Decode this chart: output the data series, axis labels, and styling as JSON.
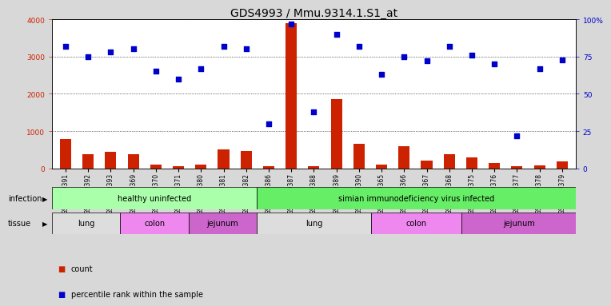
{
  "title": "GDS4993 / Mmu.9314.1.S1_at",
  "samples": [
    "GSM1249391",
    "GSM1249392",
    "GSM1249393",
    "GSM1249369",
    "GSM1249370",
    "GSM1249371",
    "GSM1249380",
    "GSM1249381",
    "GSM1249382",
    "GSM1249386",
    "GSM1249387",
    "GSM1249388",
    "GSM1249389",
    "GSM1249390",
    "GSM1249365",
    "GSM1249366",
    "GSM1249367",
    "GSM1249368",
    "GSM1249375",
    "GSM1249376",
    "GSM1249377",
    "GSM1249378",
    "GSM1249379"
  ],
  "counts": [
    780,
    380,
    440,
    380,
    110,
    60,
    110,
    500,
    470,
    60,
    3900,
    50,
    1850,
    670,
    100,
    590,
    200,
    390,
    290,
    150,
    60,
    90,
    190
  ],
  "percentiles": [
    82,
    75,
    78,
    80,
    65,
    60,
    67,
    82,
    80,
    30,
    97,
    38,
    90,
    82,
    63,
    75,
    72,
    82,
    76,
    70,
    22,
    67,
    73
  ],
  "bar_color": "#cc2200",
  "dot_color": "#0000cc",
  "ylim_left": [
    0,
    4000
  ],
  "ylim_right": [
    0,
    100
  ],
  "yticks_left": [
    0,
    1000,
    2000,
    3000,
    4000
  ],
  "yticks_right": [
    0,
    25,
    50,
    75,
    100
  ],
  "infection_groups": [
    {
      "label": "healthy uninfected",
      "start": 0,
      "end": 9,
      "color": "#aaffaa"
    },
    {
      "label": "simian immunodeficiency virus infected",
      "start": 9,
      "end": 23,
      "color": "#66ee66"
    }
  ],
  "tissue_groups": [
    {
      "label": "lung",
      "start": 0,
      "end": 3,
      "color": "#dddddd"
    },
    {
      "label": "colon",
      "start": 3,
      "end": 6,
      "color": "#ee88ee"
    },
    {
      "label": "jejunum",
      "start": 6,
      "end": 9,
      "color": "#cc66cc"
    },
    {
      "label": "lung",
      "start": 9,
      "end": 14,
      "color": "#dddddd"
    },
    {
      "label": "colon",
      "start": 14,
      "end": 18,
      "color": "#ee88ee"
    },
    {
      "label": "jejunum",
      "start": 18,
      "end": 23,
      "color": "#cc66cc"
    }
  ],
  "infection_label": "infection",
  "tissue_label": "tissue",
  "legend_count_label": "count",
  "legend_percentile_label": "percentile rank within the sample",
  "background_color": "#d8d8d8",
  "plot_bg_color": "#ffffff",
  "title_fontsize": 10,
  "tick_fontsize": 6.5,
  "bar_width": 0.5
}
